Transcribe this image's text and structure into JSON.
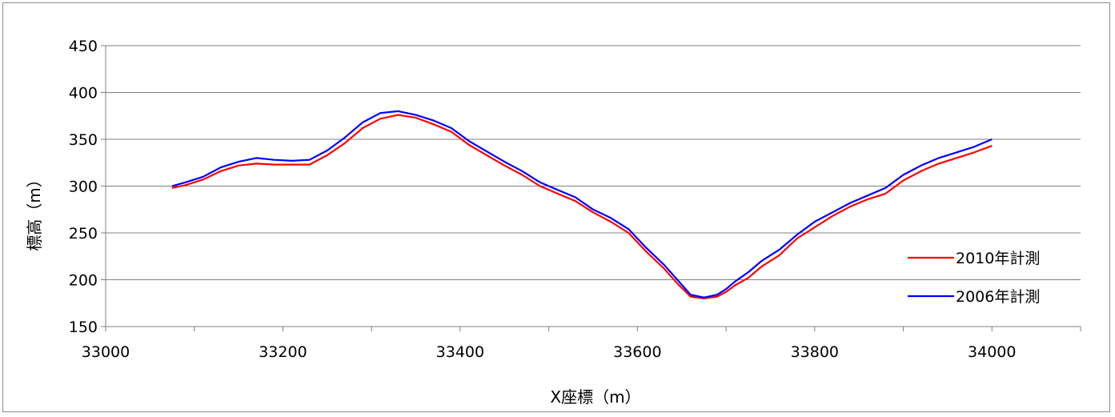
{
  "chart_data": {
    "type": "line",
    "title": "",
    "xlabel": "X座標（m）",
    "ylabel": "標高（m）",
    "xlim": [
      33000,
      34100
    ],
    "ylim": [
      150,
      450
    ],
    "x_ticks": [
      33000,
      33200,
      33400,
      33600,
      33800,
      34000
    ],
    "y_ticks": [
      150,
      200,
      250,
      300,
      350,
      400,
      450
    ],
    "grid": "horizontal",
    "legend_position": "right",
    "series": [
      {
        "name": "2010年計測",
        "color": "#ff0000",
        "points": [
          [
            33075,
            298
          ],
          [
            33090,
            301
          ],
          [
            33110,
            307
          ],
          [
            33130,
            316
          ],
          [
            33150,
            322
          ],
          [
            33170,
            324
          ],
          [
            33190,
            323
          ],
          [
            33210,
            323
          ],
          [
            33230,
            323
          ],
          [
            33250,
            333
          ],
          [
            33270,
            346
          ],
          [
            33290,
            362
          ],
          [
            33310,
            372
          ],
          [
            33330,
            376
          ],
          [
            33350,
            373
          ],
          [
            33370,
            366
          ],
          [
            33390,
            358
          ],
          [
            33410,
            344
          ],
          [
            33430,
            333
          ],
          [
            33450,
            322
          ],
          [
            33470,
            312
          ],
          [
            33490,
            300
          ],
          [
            33510,
            292
          ],
          [
            33530,
            284
          ],
          [
            33550,
            272
          ],
          [
            33570,
            262
          ],
          [
            33590,
            250
          ],
          [
            33610,
            230
          ],
          [
            33630,
            212
          ],
          [
            33645,
            196
          ],
          [
            33660,
            182
          ],
          [
            33675,
            180
          ],
          [
            33690,
            182
          ],
          [
            33700,
            187
          ],
          [
            33710,
            194
          ],
          [
            33725,
            202
          ],
          [
            33740,
            214
          ],
          [
            33760,
            226
          ],
          [
            33780,
            244
          ],
          [
            33800,
            256
          ],
          [
            33820,
            268
          ],
          [
            33840,
            278
          ],
          [
            33860,
            286
          ],
          [
            33880,
            292
          ],
          [
            33900,
            306
          ],
          [
            33920,
            316
          ],
          [
            33940,
            324
          ],
          [
            33960,
            330
          ],
          [
            33980,
            336
          ],
          [
            34000,
            343
          ]
        ]
      },
      {
        "name": "2006年計測",
        "color": "#0000ff",
        "points": [
          [
            33075,
            300
          ],
          [
            33090,
            304
          ],
          [
            33110,
            310
          ],
          [
            33130,
            320
          ],
          [
            33150,
            326
          ],
          [
            33170,
            330
          ],
          [
            33190,
            328
          ],
          [
            33210,
            327
          ],
          [
            33230,
            328
          ],
          [
            33250,
            338
          ],
          [
            33270,
            352
          ],
          [
            33290,
            368
          ],
          [
            33310,
            378
          ],
          [
            33330,
            380
          ],
          [
            33350,
            376
          ],
          [
            33370,
            370
          ],
          [
            33390,
            362
          ],
          [
            33410,
            348
          ],
          [
            33430,
            337
          ],
          [
            33450,
            326
          ],
          [
            33470,
            316
          ],
          [
            33490,
            304
          ],
          [
            33510,
            296
          ],
          [
            33530,
            288
          ],
          [
            33550,
            275
          ],
          [
            33570,
            266
          ],
          [
            33590,
            254
          ],
          [
            33610,
            234
          ],
          [
            33630,
            216
          ],
          [
            33645,
            200
          ],
          [
            33660,
            184
          ],
          [
            33675,
            181
          ],
          [
            33690,
            184
          ],
          [
            33700,
            190
          ],
          [
            33710,
            198
          ],
          [
            33725,
            208
          ],
          [
            33740,
            220
          ],
          [
            33760,
            232
          ],
          [
            33780,
            248
          ],
          [
            33800,
            262
          ],
          [
            33820,
            272
          ],
          [
            33840,
            282
          ],
          [
            33860,
            290
          ],
          [
            33880,
            298
          ],
          [
            33900,
            312
          ],
          [
            33920,
            322
          ],
          [
            33940,
            330
          ],
          [
            33960,
            336
          ],
          [
            33980,
            342
          ],
          [
            34000,
            350
          ]
        ]
      }
    ]
  }
}
